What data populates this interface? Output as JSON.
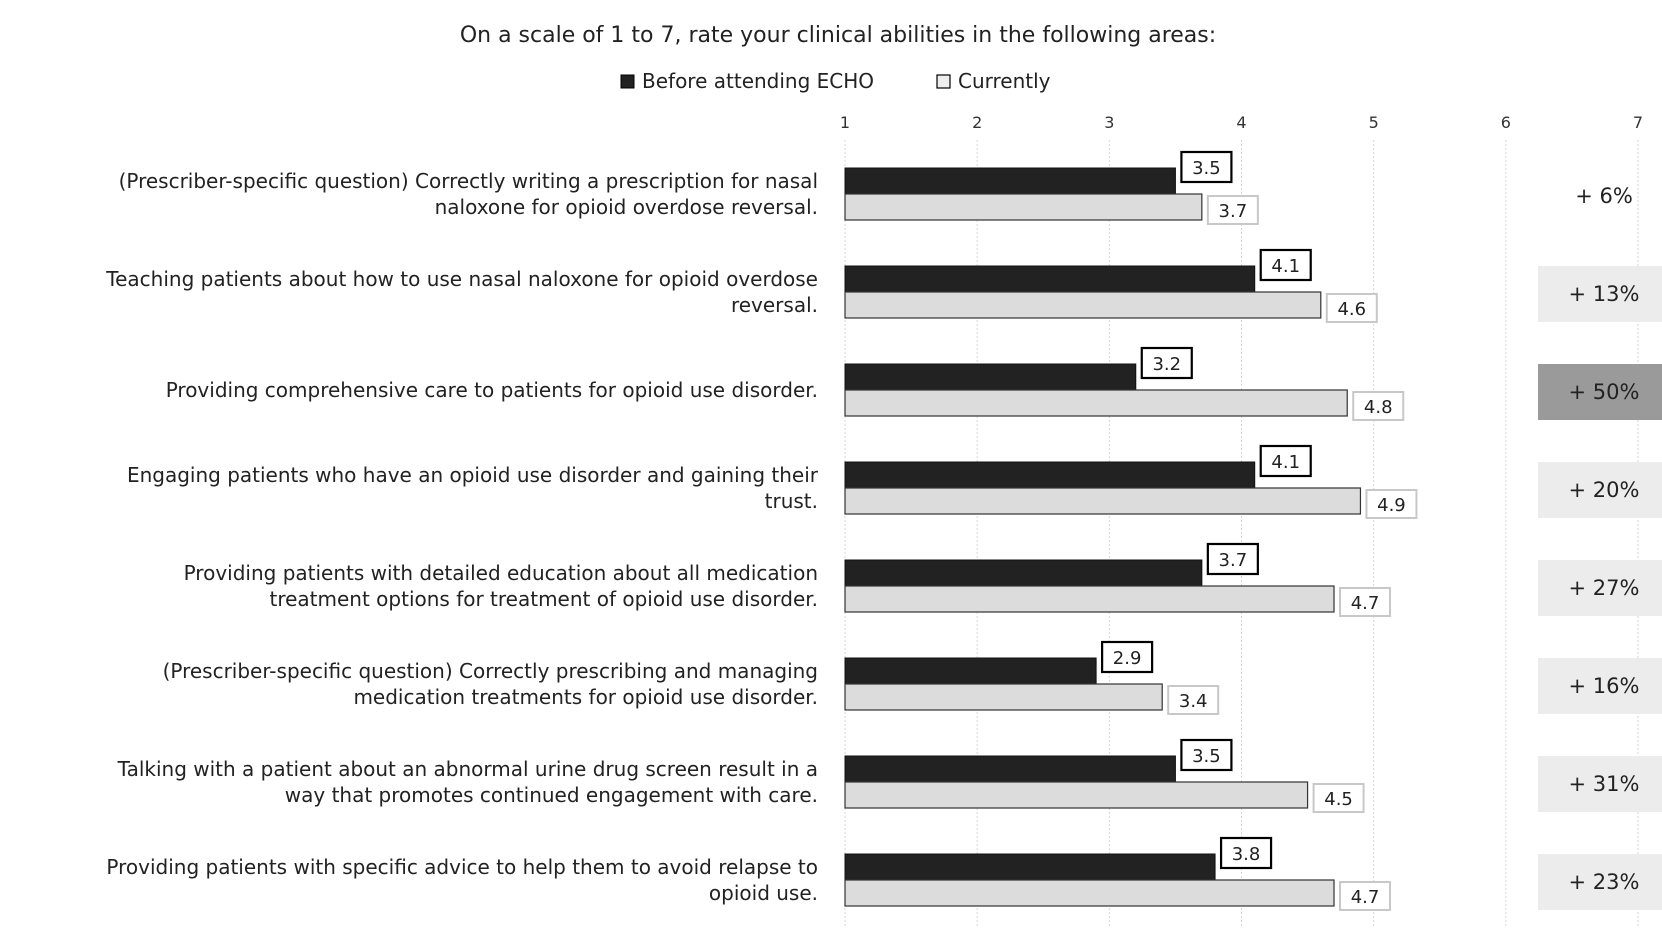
{
  "chart_data": {
    "type": "bar",
    "orientation": "horizontal",
    "title": "On a scale of 1 to 7, rate your clinical abilities in the following areas:",
    "legend": [
      "Before attending ECHO",
      "Currently"
    ],
    "legend_position": "top",
    "xlim": [
      1,
      7
    ],
    "x_ticks": [
      "1",
      "2",
      "3",
      "4",
      "5",
      "6",
      "7"
    ],
    "grid": true,
    "colors": {
      "before": "#222222",
      "currently": "#dcdcdc",
      "highlight": "#9a9a9a",
      "pct_bg": "#ececec"
    },
    "categories": [
      [
        "(Prescriber-specific question) Correctly writing a prescription for nasal",
        "naloxone for opioid overdose reversal."
      ],
      [
        "Teaching patients about how to use nasal naloxone for opioid overdose",
        "reversal."
      ],
      [
        "Providing comprehensive care to patients for opioid use disorder."
      ],
      [
        "Engaging patients who have an opioid use disorder and gaining their",
        "trust."
      ],
      [
        "Providing patients with detailed education about all medication",
        "treatment options for treatment of opioid use disorder."
      ],
      [
        "(Prescriber-specific question) Correctly prescribing and managing",
        "medication treatments for opioid use disorder."
      ],
      [
        "Talking with a patient about an abnormal urine drug screen result in a",
        "way that promotes continued engagement with care."
      ],
      [
        "Providing patients with specific advice to help them to avoid relapse to",
        "opioid use."
      ]
    ],
    "series": [
      {
        "name": "Before attending ECHO",
        "values": [
          3.5,
          4.1,
          3.2,
          4.1,
          3.7,
          2.9,
          3.5,
          3.8
        ]
      },
      {
        "name": "Currently",
        "values": [
          3.7,
          4.6,
          4.8,
          4.9,
          4.7,
          3.4,
          4.5,
          4.7
        ]
      }
    ],
    "percent_change": [
      "+ 6%",
      "+ 13%",
      "+ 50%",
      "+ 20%",
      "+ 27%",
      "+ 16%",
      "+ 31%",
      "+ 23%"
    ],
    "highlighted_change_index": 2,
    "unshaded_change_index": 0
  }
}
